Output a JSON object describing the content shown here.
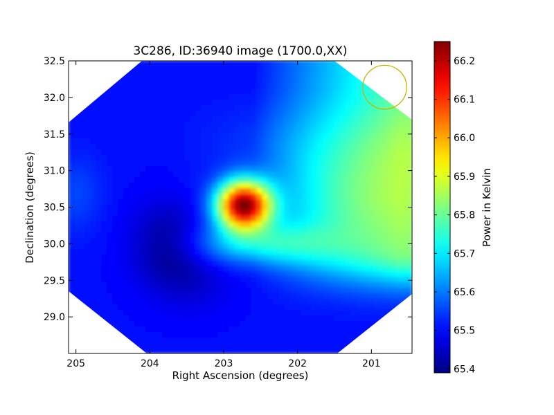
{
  "chart_data": {
    "type": "heatmap",
    "title": "3C286, ID:36940 image (1700.0,XX)",
    "xlabel": "Right Ascension (degrees)",
    "ylabel": "Declination (degrees)",
    "xlim": [
      205.1,
      200.45
    ],
    "ylim": [
      28.5,
      32.5
    ],
    "x_ticks": [
      205,
      204,
      203,
      202,
      201
    ],
    "x_tick_labels": [
      "205",
      "204",
      "203",
      "202",
      "201"
    ],
    "y_ticks": [
      29.0,
      29.5,
      30.0,
      30.5,
      31.0,
      31.5,
      32.0,
      32.5
    ],
    "y_tick_labels": [
      "29.0",
      "29.5",
      "30.0",
      "30.5",
      "31.0",
      "31.5",
      "32.0",
      "32.5"
    ],
    "colormap": "jet",
    "colorbar": {
      "label": "Power in Kelvin",
      "range": [
        65.39,
        66.25
      ],
      "ticks": [
        65.4,
        65.5,
        65.6,
        65.7,
        65.8,
        65.9,
        66.0,
        66.1,
        66.2
      ],
      "tick_labels": [
        "65.4",
        "65.5",
        "65.6",
        "65.7",
        "65.8",
        "65.9",
        "66.0",
        "66.1",
        "66.2"
      ]
    },
    "peak": {
      "ra": 202.72,
      "dec": 30.53,
      "value": 66.24
    },
    "features": [
      {
        "kind": "peak",
        "ra": 202.72,
        "dec": 30.53,
        "value": 66.24
      },
      {
        "kind": "minimum",
        "ra": 203.75,
        "dec": 30.0,
        "value": 65.4
      },
      {
        "kind": "background-gradient",
        "low_side": "east",
        "high_side": "west",
        "west_edge_value": 65.8
      }
    ],
    "beam_marker": {
      "ra": 200.82,
      "dec": 32.14,
      "radius_deg": 0.3,
      "color": "#c8b400"
    },
    "map_valid_region": "octagon",
    "grid": false
  }
}
